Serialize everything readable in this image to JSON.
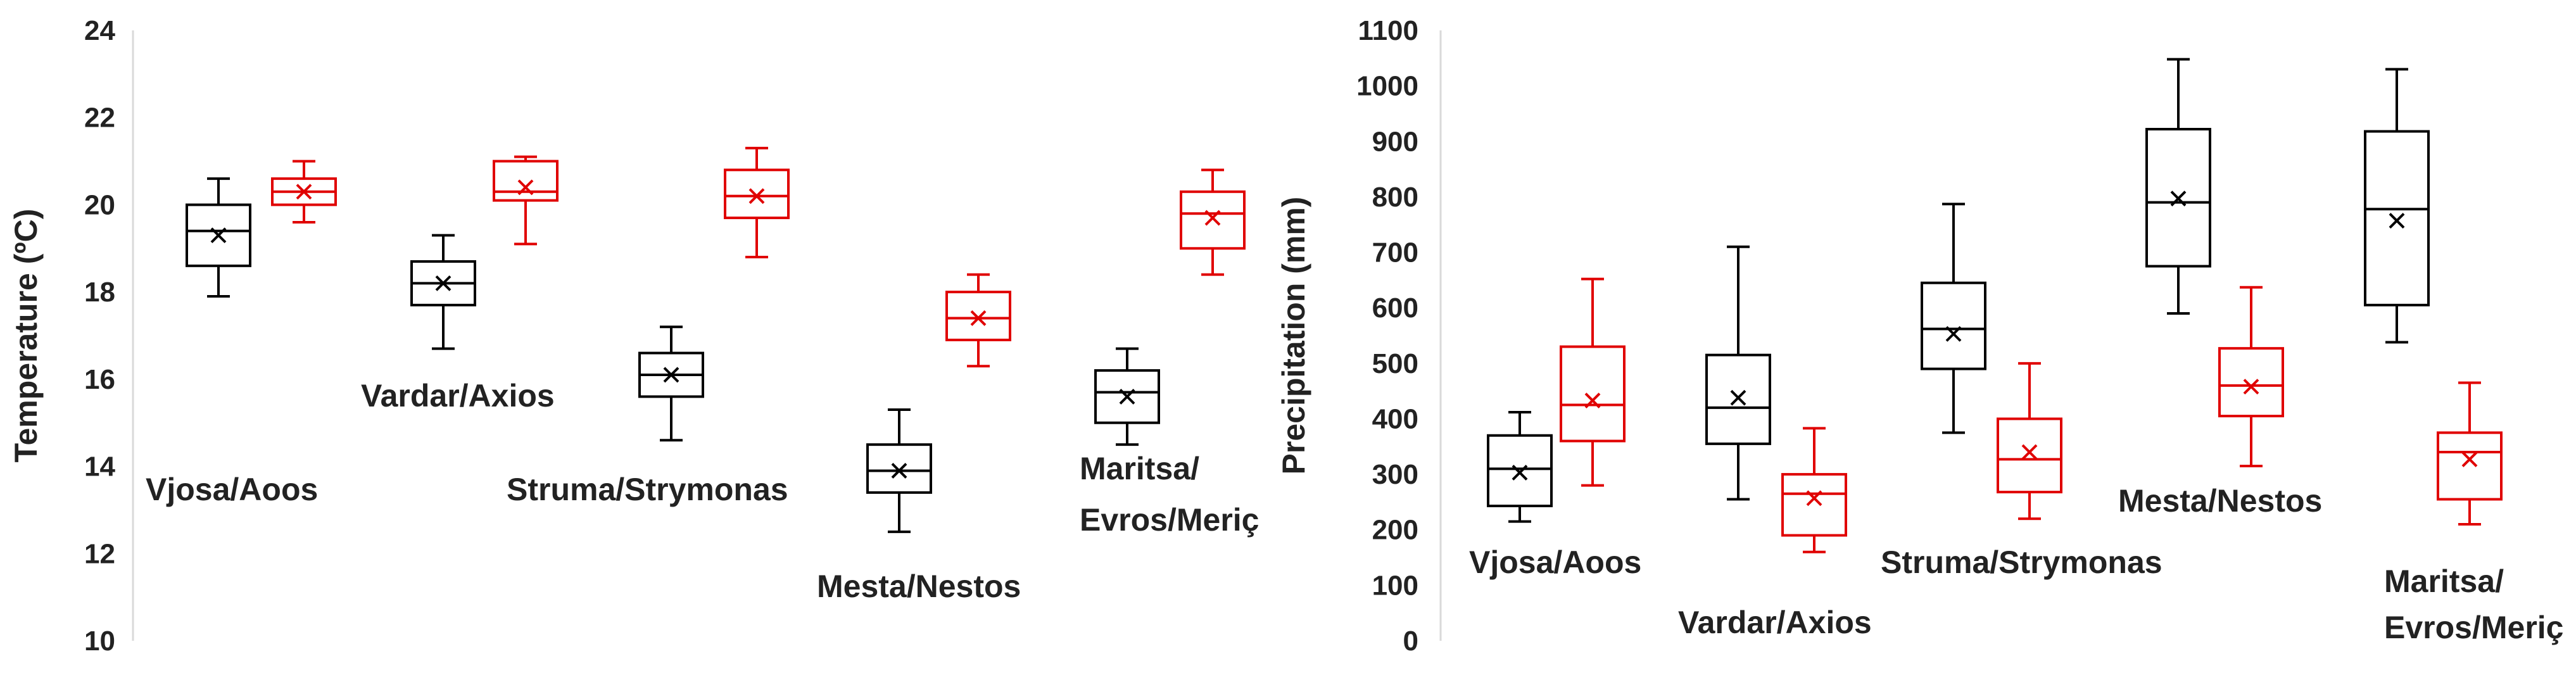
{
  "colors": {
    "series_a": "#000000",
    "series_b": "#e00000",
    "axis": "#d9d9d9"
  },
  "chart_data": [
    {
      "type": "boxplot",
      "title": "",
      "ylabel": "Temperature (ºC)",
      "ylim": [
        10,
        24
      ],
      "yticks": [
        10,
        12,
        14,
        16,
        18,
        20,
        22,
        24
      ],
      "categories": [
        "Vjosa/Aoos",
        "Vardar/Axios",
        "Struma/Strymonas",
        "Mesta/Nestos",
        "Maritsa/\nEvros/Meriç"
      ],
      "series": [
        {
          "name": "black",
          "color": "#000000",
          "boxes": [
            {
              "min": 17.9,
              "q1": 18.6,
              "median": 19.4,
              "q3": 20.0,
              "max": 20.6,
              "mean": 19.3
            },
            {
              "min": 16.7,
              "q1": 17.7,
              "median": 18.2,
              "q3": 18.7,
              "max": 19.3,
              "mean": 18.2
            },
            {
              "min": 14.6,
              "q1": 15.6,
              "median": 16.1,
              "q3": 16.6,
              "max": 17.2,
              "mean": 16.1
            },
            {
              "min": 12.5,
              "q1": 13.4,
              "median": 13.9,
              "q3": 14.5,
              "max": 15.3,
              "mean": 13.9
            },
            {
              "min": 14.5,
              "q1": 15.0,
              "median": 15.7,
              "q3": 16.2,
              "max": 16.7,
              "mean": 15.6
            }
          ]
        },
        {
          "name": "red",
          "color": "#e00000",
          "boxes": [
            {
              "min": 19.6,
              "q1": 20.0,
              "median": 20.3,
              "q3": 20.6,
              "max": 21.0,
              "mean": 20.3
            },
            {
              "min": 19.1,
              "q1": 20.1,
              "median": 20.3,
              "q3": 21.0,
              "max": 21.1,
              "mean": 20.4
            },
            {
              "min": 18.8,
              "q1": 19.7,
              "median": 20.2,
              "q3": 20.8,
              "max": 21.3,
              "mean": 20.2
            },
            {
              "min": 16.3,
              "q1": 16.9,
              "median": 17.4,
              "q3": 18.0,
              "max": 18.4,
              "mean": 17.4
            },
            {
              "min": 18.4,
              "q1": 19.0,
              "median": 19.8,
              "q3": 20.3,
              "max": 20.8,
              "mean": 19.7
            }
          ]
        }
      ]
    },
    {
      "type": "boxplot",
      "title": "",
      "ylabel": "Precipitation (mm)",
      "ylim": [
        0,
        1100
      ],
      "yticks": [
        0,
        100,
        200,
        300,
        400,
        500,
        600,
        700,
        800,
        900,
        1000,
        1100
      ],
      "categories": [
        "Vjosa/Aoos",
        "Vardar/Axios",
        "Struma/Strymonas",
        "Mesta/Nestos",
        "Maritsa/\nEvros/Meriç"
      ],
      "series": [
        {
          "name": "black",
          "color": "#000000",
          "boxes": [
            {
              "min": 215,
              "q1": 243,
              "median": 310,
              "q3": 370,
              "max": 412,
              "mean": 303
            },
            {
              "min": 255,
              "q1": 355,
              "median": 420,
              "q3": 515,
              "max": 710,
              "mean": 438
            },
            {
              "min": 375,
              "q1": 490,
              "median": 562,
              "q3": 645,
              "max": 787,
              "mean": 553
            },
            {
              "min": 590,
              "q1": 675,
              "median": 790,
              "q3": 922,
              "max": 1048,
              "mean": 797
            },
            {
              "min": 538,
              "q1": 605,
              "median": 778,
              "q3": 918,
              "max": 1030,
              "mean": 757
            }
          ]
        },
        {
          "name": "red",
          "color": "#e00000",
          "boxes": [
            {
              "min": 280,
              "q1": 360,
              "median": 425,
              "q3": 530,
              "max": 652,
              "mean": 433
            },
            {
              "min": 160,
              "q1": 190,
              "median": 265,
              "q3": 300,
              "max": 383,
              "mean": 257
            },
            {
              "min": 220,
              "q1": 268,
              "median": 327,
              "q3": 400,
              "max": 500,
              "mean": 340
            },
            {
              "min": 315,
              "q1": 405,
              "median": 460,
              "q3": 527,
              "max": 637,
              "mean": 458
            },
            {
              "min": 210,
              "q1": 255,
              "median": 340,
              "q3": 375,
              "max": 465,
              "mean": 327
            }
          ]
        }
      ]
    }
  ]
}
